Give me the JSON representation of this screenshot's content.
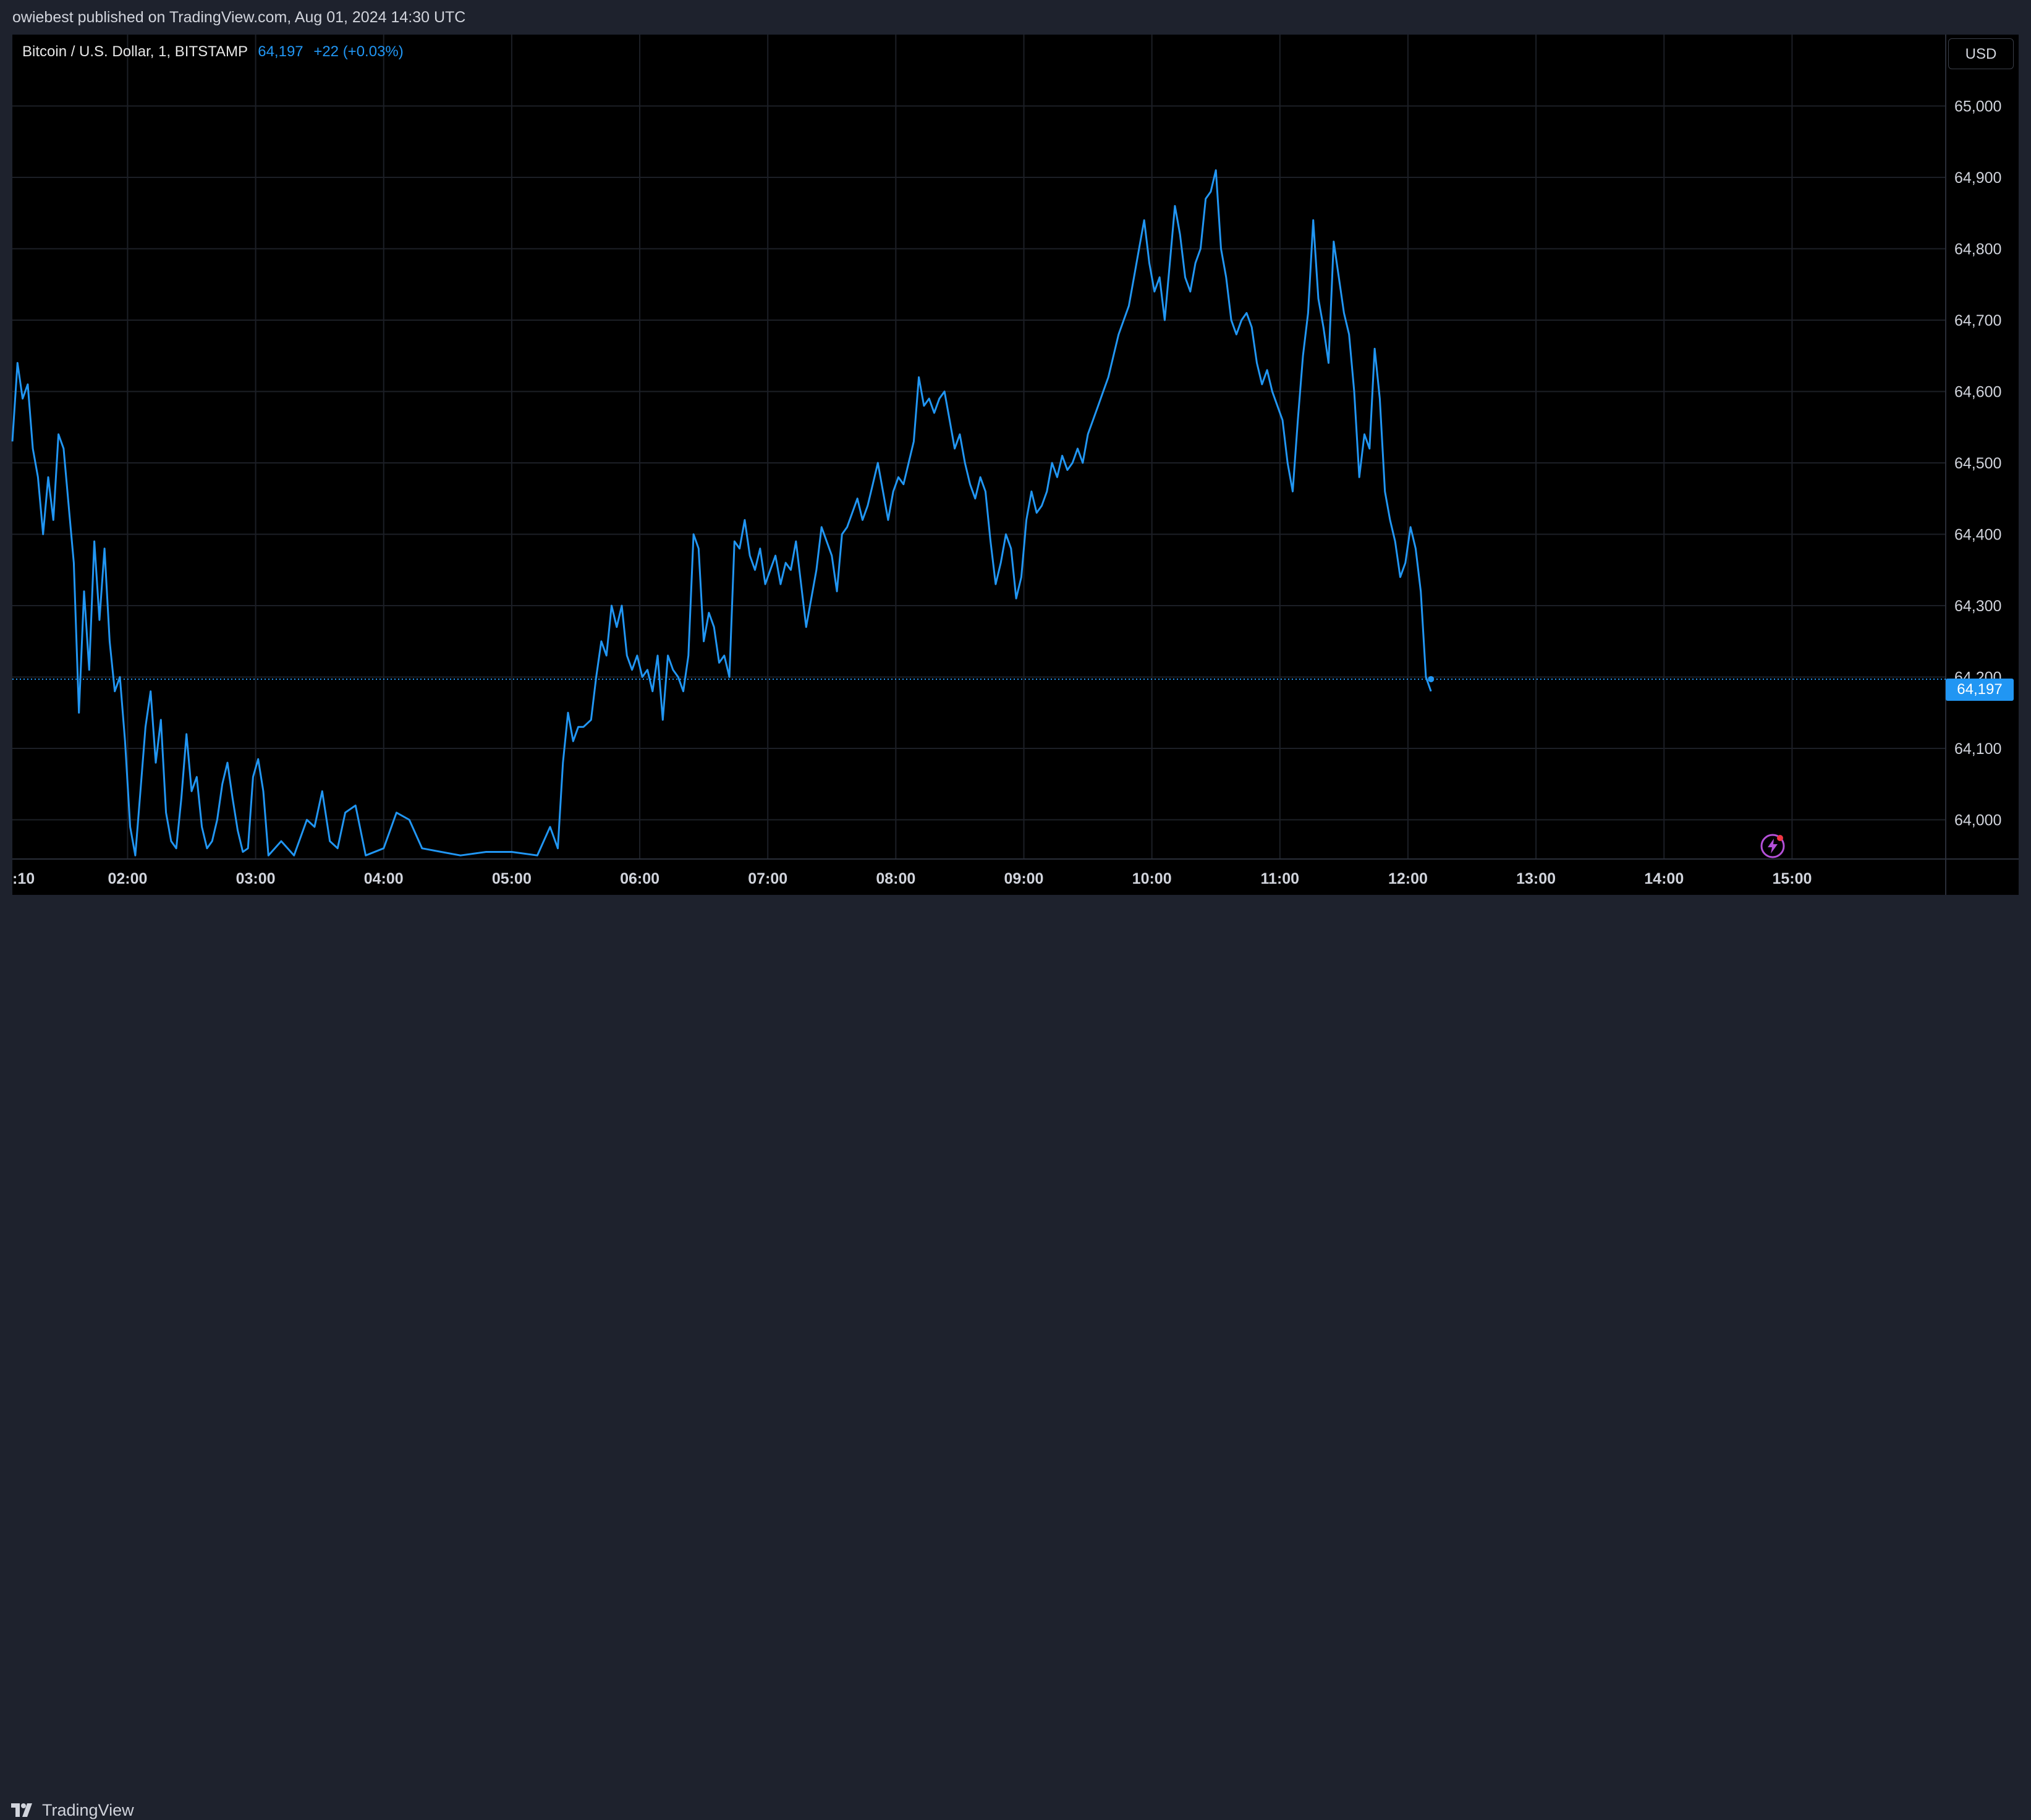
{
  "header": {
    "publisher_text": "owiebest published on TradingView.com, Aug 01, 2024 14:30 UTC"
  },
  "legend": {
    "symbol": "Bitcoin / U.S. Dollar, 1, BITSTAMP",
    "last": "64,197",
    "change": "+22 (+0.03%)"
  },
  "currency_button": "USD",
  "price_label": "64,197",
  "footer": {
    "brand": "TradingView"
  },
  "icons": {
    "logo": "tradingview-logo-icon",
    "flash": "lightning-icon"
  },
  "colors": {
    "line": "#2196f3",
    "background": "#000000",
    "grid": "#1c1f26",
    "price_tag": "#2196f3"
  },
  "chart_data": {
    "type": "line",
    "title": "Bitcoin / U.S. Dollar, 1, BITSTAMP",
    "xlabel": "",
    "ylabel": "",
    "x_ticks": [
      ":10",
      "02:00",
      "03:00",
      "04:00",
      "05:00",
      "06:00",
      "07:00",
      "08:00",
      "09:00",
      "10:00",
      "11:00",
      "12:00",
      "13:00",
      "14:00",
      "15:00"
    ],
    "y_ticks": [
      64000,
      64100,
      64200,
      64300,
      64400,
      64500,
      64600,
      64700,
      64800,
      64900,
      65000
    ],
    "y_tick_labels": [
      "64,000",
      "64,100",
      "64,200",
      "64,300",
      "64,400",
      "64,500",
      "64,600",
      "64,700",
      "64,800",
      "64,900",
      "65,000"
    ],
    "ylim": [
      63945,
      65100
    ],
    "x_unit": "hours UTC",
    "xlim": [
      1.1,
      16.2
    ],
    "last_price": 64197,
    "grid": true,
    "series": [
      {
        "values": [
          [
            1.1,
            64530
          ],
          [
            1.14,
            64640
          ],
          [
            1.18,
            64590
          ],
          [
            1.22,
            64610
          ],
          [
            1.26,
            64520
          ],
          [
            1.3,
            64480
          ],
          [
            1.34,
            64400
          ],
          [
            1.38,
            64480
          ],
          [
            1.42,
            64420
          ],
          [
            1.46,
            64540
          ],
          [
            1.5,
            64520
          ],
          [
            1.54,
            64440
          ],
          [
            1.58,
            64360
          ],
          [
            1.62,
            64150
          ],
          [
            1.66,
            64320
          ],
          [
            1.7,
            64210
          ],
          [
            1.74,
            64390
          ],
          [
            1.78,
            64280
          ],
          [
            1.82,
            64380
          ],
          [
            1.86,
            64250
          ],
          [
            1.9,
            64180
          ],
          [
            1.94,
            64200
          ],
          [
            1.98,
            64110
          ],
          [
            2.02,
            63990
          ],
          [
            2.06,
            63950
          ],
          [
            2.1,
            64040
          ],
          [
            2.14,
            64130
          ],
          [
            2.18,
            64180
          ],
          [
            2.22,
            64080
          ],
          [
            2.26,
            64140
          ],
          [
            2.3,
            64010
          ],
          [
            2.34,
            63970
          ],
          [
            2.38,
            63960
          ],
          [
            2.42,
            64030
          ],
          [
            2.46,
            64120
          ],
          [
            2.5,
            64040
          ],
          [
            2.54,
            64060
          ],
          [
            2.58,
            63990
          ],
          [
            2.62,
            63960
          ],
          [
            2.66,
            63970
          ],
          [
            2.7,
            64000
          ],
          [
            2.74,
            64050
          ],
          [
            2.78,
            64080
          ],
          [
            2.82,
            64030
          ],
          [
            2.86,
            63985
          ],
          [
            2.9,
            63955
          ],
          [
            2.94,
            63960
          ],
          [
            2.98,
            64060
          ],
          [
            3.02,
            64085
          ],
          [
            3.06,
            64040
          ],
          [
            3.1,
            63950
          ],
          [
            3.2,
            63970
          ],
          [
            3.3,
            63950
          ],
          [
            3.4,
            64000
          ],
          [
            3.46,
            63990
          ],
          [
            3.52,
            64040
          ],
          [
            3.58,
            63970
          ],
          [
            3.64,
            63960
          ],
          [
            3.7,
            64010
          ],
          [
            3.78,
            64020
          ],
          [
            3.86,
            63950
          ],
          [
            4.0,
            63960
          ],
          [
            4.1,
            64010
          ],
          [
            4.2,
            64000
          ],
          [
            4.3,
            63960
          ],
          [
            4.45,
            63955
          ],
          [
            4.6,
            63950
          ],
          [
            4.8,
            63955
          ],
          [
            5.0,
            63955
          ],
          [
            5.2,
            63950
          ],
          [
            5.3,
            63990
          ],
          [
            5.36,
            63960
          ],
          [
            5.4,
            64080
          ],
          [
            5.44,
            64150
          ],
          [
            5.48,
            64110
          ],
          [
            5.52,
            64130
          ],
          [
            5.56,
            64130
          ],
          [
            5.62,
            64140
          ],
          [
            5.66,
            64200
          ],
          [
            5.7,
            64250
          ],
          [
            5.74,
            64230
          ],
          [
            5.78,
            64300
          ],
          [
            5.82,
            64270
          ],
          [
            5.86,
            64300
          ],
          [
            5.9,
            64230
          ],
          [
            5.94,
            64210
          ],
          [
            5.98,
            64230
          ],
          [
            6.02,
            64200
          ],
          [
            6.06,
            64210
          ],
          [
            6.1,
            64180
          ],
          [
            6.14,
            64230
          ],
          [
            6.18,
            64140
          ],
          [
            6.22,
            64230
          ],
          [
            6.26,
            64210
          ],
          [
            6.3,
            64200
          ],
          [
            6.34,
            64180
          ],
          [
            6.38,
            64230
          ],
          [
            6.42,
            64400
          ],
          [
            6.46,
            64380
          ],
          [
            6.5,
            64250
          ],
          [
            6.54,
            64290
          ],
          [
            6.58,
            64270
          ],
          [
            6.62,
            64220
          ],
          [
            6.66,
            64230
          ],
          [
            6.7,
            64200
          ],
          [
            6.74,
            64390
          ],
          [
            6.78,
            64380
          ],
          [
            6.82,
            64420
          ],
          [
            6.86,
            64370
          ],
          [
            6.9,
            64350
          ],
          [
            6.94,
            64380
          ],
          [
            6.98,
            64330
          ],
          [
            7.02,
            64350
          ],
          [
            7.06,
            64370
          ],
          [
            7.1,
            64330
          ],
          [
            7.14,
            64360
          ],
          [
            7.18,
            64350
          ],
          [
            7.22,
            64390
          ],
          [
            7.26,
            64330
          ],
          [
            7.3,
            64270
          ],
          [
            7.34,
            64310
          ],
          [
            7.38,
            64350
          ],
          [
            7.42,
            64410
          ],
          [
            7.46,
            64390
          ],
          [
            7.5,
            64370
          ],
          [
            7.54,
            64320
          ],
          [
            7.58,
            64400
          ],
          [
            7.62,
            64410
          ],
          [
            7.66,
            64430
          ],
          [
            7.7,
            64450
          ],
          [
            7.74,
            64420
          ],
          [
            7.78,
            64440
          ],
          [
            7.82,
            64470
          ],
          [
            7.86,
            64500
          ],
          [
            7.9,
            64460
          ],
          [
            7.94,
            64420
          ],
          [
            7.98,
            64460
          ],
          [
            8.02,
            64480
          ],
          [
            8.06,
            64470
          ],
          [
            8.1,
            64500
          ],
          [
            8.14,
            64530
          ],
          [
            8.18,
            64620
          ],
          [
            8.22,
            64580
          ],
          [
            8.26,
            64590
          ],
          [
            8.3,
            64570
          ],
          [
            8.34,
            64590
          ],
          [
            8.38,
            64600
          ],
          [
            8.42,
            64560
          ],
          [
            8.46,
            64520
          ],
          [
            8.5,
            64540
          ],
          [
            8.54,
            64500
          ],
          [
            8.58,
            64470
          ],
          [
            8.62,
            64450
          ],
          [
            8.66,
            64480
          ],
          [
            8.7,
            64460
          ],
          [
            8.74,
            64390
          ],
          [
            8.78,
            64330
          ],
          [
            8.82,
            64360
          ],
          [
            8.86,
            64400
          ],
          [
            8.9,
            64380
          ],
          [
            8.94,
            64310
          ],
          [
            8.98,
            64340
          ],
          [
            9.02,
            64420
          ],
          [
            9.06,
            64460
          ],
          [
            9.1,
            64430
          ],
          [
            9.14,
            64440
          ],
          [
            9.18,
            64460
          ],
          [
            9.22,
            64500
          ],
          [
            9.26,
            64480
          ],
          [
            9.3,
            64510
          ],
          [
            9.34,
            64490
          ],
          [
            9.38,
            64500
          ],
          [
            9.42,
            64520
          ],
          [
            9.46,
            64500
          ],
          [
            9.5,
            64540
          ],
          [
            9.54,
            64560
          ],
          [
            9.58,
            64580
          ],
          [
            9.62,
            64600
          ],
          [
            9.66,
            64620
          ],
          [
            9.7,
            64650
          ],
          [
            9.74,
            64680
          ],
          [
            9.78,
            64700
          ],
          [
            9.82,
            64720
          ],
          [
            9.86,
            64760
          ],
          [
            9.9,
            64800
          ],
          [
            9.94,
            64840
          ],
          [
            9.98,
            64780
          ],
          [
            10.02,
            64740
          ],
          [
            10.06,
            64760
          ],
          [
            10.1,
            64700
          ],
          [
            10.14,
            64780
          ],
          [
            10.18,
            64860
          ],
          [
            10.22,
            64820
          ],
          [
            10.26,
            64760
          ],
          [
            10.3,
            64740
          ],
          [
            10.34,
            64780
          ],
          [
            10.38,
            64800
          ],
          [
            10.42,
            64870
          ],
          [
            10.46,
            64880
          ],
          [
            10.5,
            64910
          ],
          [
            10.54,
            64800
          ],
          [
            10.58,
            64760
          ],
          [
            10.62,
            64700
          ],
          [
            10.66,
            64680
          ],
          [
            10.7,
            64700
          ],
          [
            10.74,
            64710
          ],
          [
            10.78,
            64690
          ],
          [
            10.82,
            64640
          ],
          [
            10.86,
            64610
          ],
          [
            10.9,
            64630
          ],
          [
            10.94,
            64600
          ],
          [
            10.98,
            64580
          ],
          [
            11.02,
            64560
          ],
          [
            11.06,
            64500
          ],
          [
            11.1,
            64460
          ],
          [
            11.14,
            64560
          ],
          [
            11.18,
            64650
          ],
          [
            11.22,
            64710
          ],
          [
            11.26,
            64840
          ],
          [
            11.3,
            64730
          ],
          [
            11.34,
            64690
          ],
          [
            11.38,
            64640
          ],
          [
            11.42,
            64810
          ],
          [
            11.46,
            64760
          ],
          [
            11.5,
            64710
          ],
          [
            11.54,
            64680
          ],
          [
            11.58,
            64600
          ],
          [
            11.62,
            64480
          ],
          [
            11.66,
            64540
          ],
          [
            11.7,
            64520
          ],
          [
            11.74,
            64660
          ],
          [
            11.78,
            64590
          ],
          [
            11.82,
            64460
          ],
          [
            11.86,
            64420
          ],
          [
            11.9,
            64390
          ],
          [
            11.94,
            64340
          ],
          [
            11.98,
            64360
          ],
          [
            12.02,
            64410
          ],
          [
            12.06,
            64380
          ],
          [
            12.1,
            64320
          ],
          [
            12.14,
            64200
          ],
          [
            12.18,
            64180
          ]
        ]
      }
    ]
  }
}
